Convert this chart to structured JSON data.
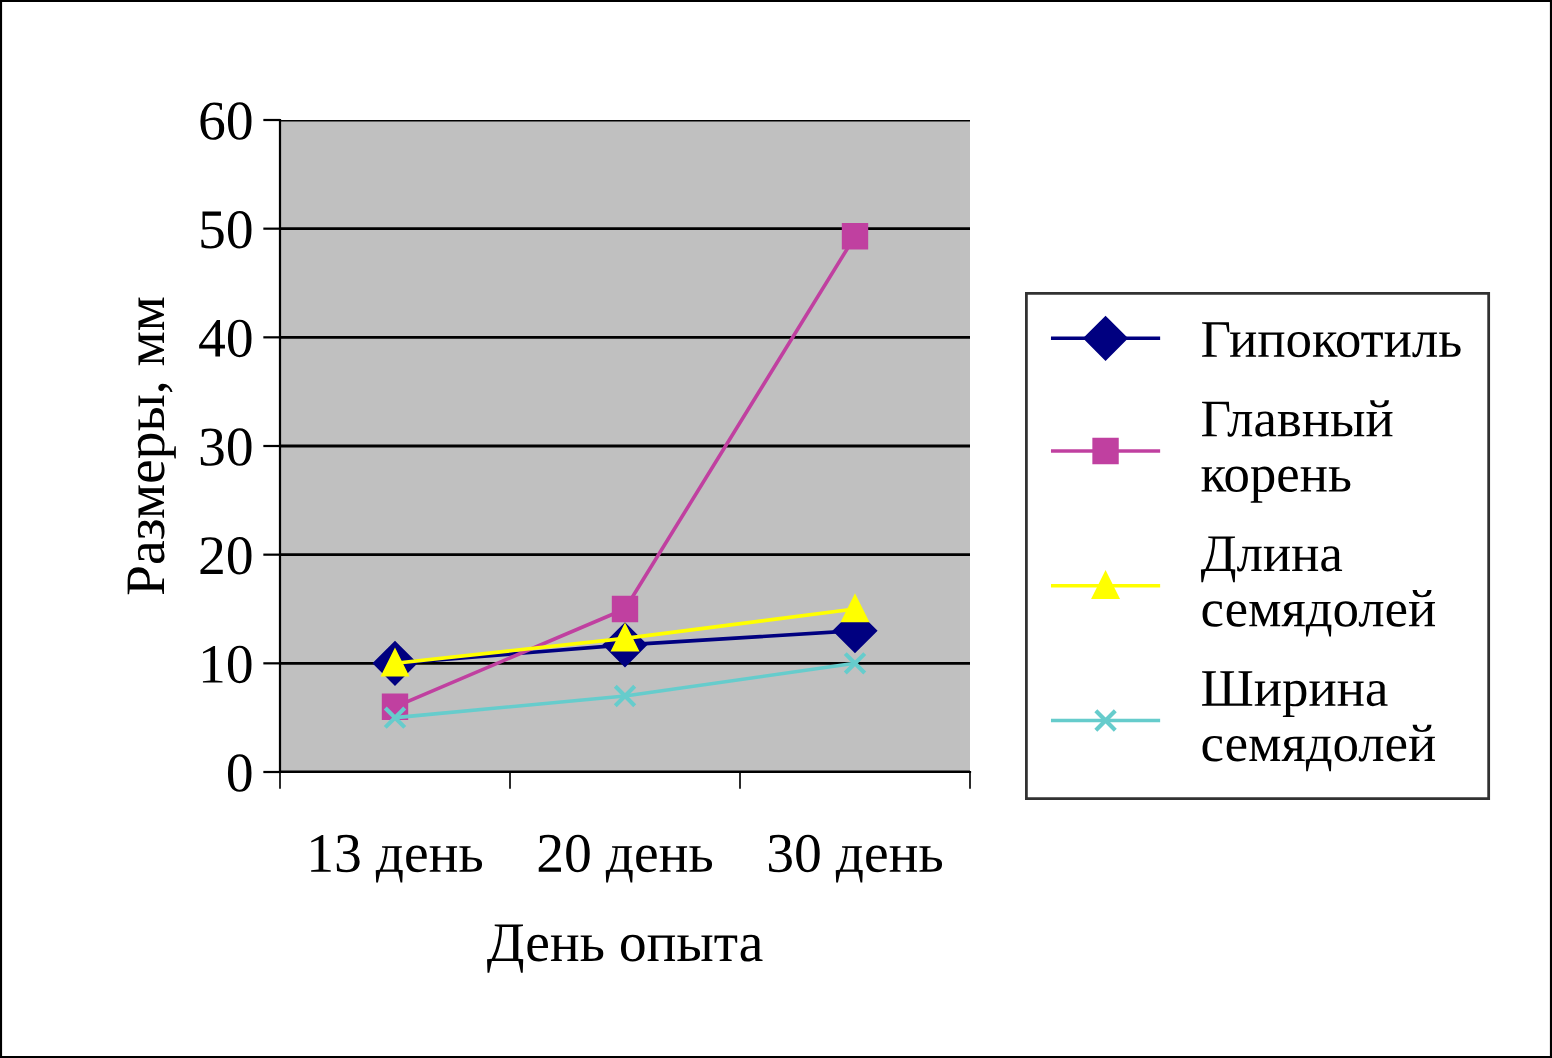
{
  "chart_data": {
    "type": "line",
    "xlabel": "День опыта",
    "ylabel": "Размеры, мм",
    "categories": [
      "13 день",
      "20 день",
      "30 день"
    ],
    "series": [
      {
        "name": "Гипокотиль",
        "color": "#000080",
        "marker": "diamond",
        "values": [
          10,
          11.7,
          13
        ]
      },
      {
        "name": "Главный корень",
        "color": "#c040a0",
        "marker": "square",
        "values": [
          6,
          15,
          49.3
        ]
      },
      {
        "name": "Длина семядолей",
        "color": "#ffff00",
        "marker": "triangle",
        "values": [
          10,
          12.3,
          15
        ]
      },
      {
        "name": "Ширина семядолей",
        "color": "#66cccc",
        "marker": "cross",
        "values": [
          5,
          7,
          10
        ]
      }
    ],
    "ylim": [
      0,
      60
    ],
    "yticks": [
      0,
      10,
      20,
      30,
      40,
      50,
      60
    ],
    "grid": "y",
    "legend": "right",
    "line_style": "solid"
  }
}
